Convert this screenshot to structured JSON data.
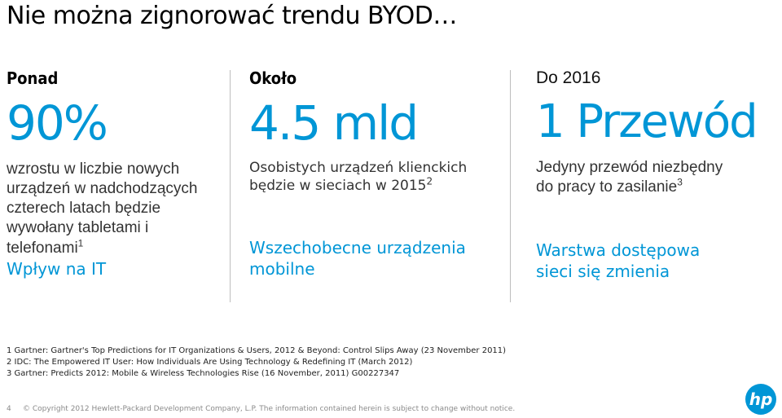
{
  "title": "Nie można zignorować trendu BYOD…",
  "columns": [
    {
      "lead": "Ponad",
      "big": "90%",
      "desc_lines": [
        "wzrostu w liczbie nowych",
        "urządzeń w nadchodzących",
        "czterech latach będzie",
        "wywołany tabletami i",
        "telefonami"
      ],
      "desc_sup": "1",
      "accent": "Wpływ na IT"
    },
    {
      "lead": "Około",
      "big": "4.5 mld",
      "desc_lines": [
        "Osobistych urządzeń klienckich",
        "będzie w sieciach w 2015"
      ],
      "desc_sup": "2",
      "accent_lines": [
        "Wszechobecne urządzenia",
        "mobilne"
      ]
    },
    {
      "lead": "Do 2016",
      "big": "1 Przewód",
      "desc_lines": [
        "Jedyny przewód niezbędny",
        "do pracy to zasilanie"
      ],
      "desc_sup": "3",
      "accent_lines": [
        "Warstwa dostępowa",
        "sieci się zmienia"
      ]
    }
  ],
  "footnotes": [
    "1 Gartner: Gartner's Top Predictions for IT Organizations & Users, 2012 & Beyond: Control Slips Away (23 November 2011)",
    "2 IDC: The Empowered IT User: How Individuals Are Using Technology & Redefining IT (March 2012)",
    "3 Gartner: Predicts 2012: Mobile & Wireless Technologies Rise (16 November, 2011) G00227347"
  ],
  "footer": {
    "page_number": "4",
    "copyright": "© Copyright 2012 Hewlett-Packard Development Company, L.P.  The information contained herein is subject to change without notice."
  },
  "logo": {
    "text": "hp",
    "color": "#0096d6"
  }
}
